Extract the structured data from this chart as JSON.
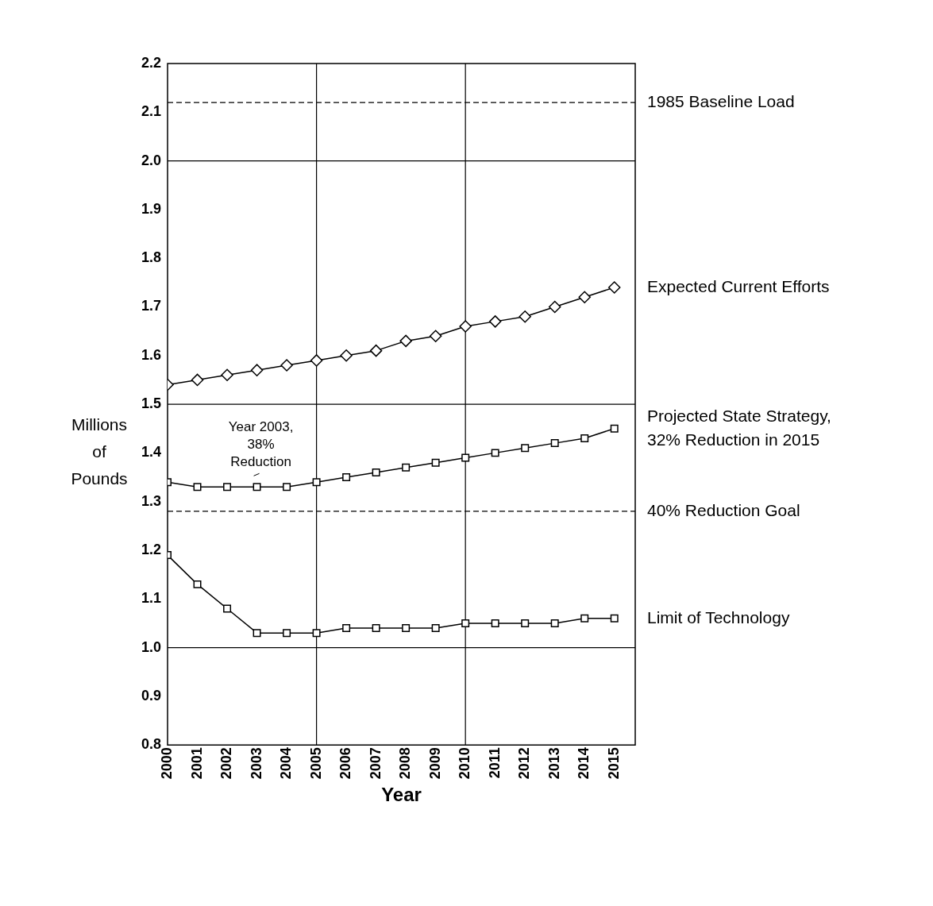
{
  "chart_data": {
    "type": "line",
    "xlabel": "Year",
    "ylabel": "Millions of Pounds",
    "x": [
      2000,
      2001,
      2002,
      2003,
      2004,
      2005,
      2006,
      2007,
      2008,
      2009,
      2010,
      2011,
      2012,
      2013,
      2014,
      2015
    ],
    "xlim": [
      2000,
      2015.7
    ],
    "xticks": [
      2000,
      2001,
      2002,
      2003,
      2004,
      2005,
      2006,
      2007,
      2008,
      2009,
      2010,
      2011,
      2012,
      2013,
      2014,
      2015
    ],
    "ylim": [
      0.8,
      2.2
    ],
    "yticks": [
      0.8,
      0.9,
      {
        "value": 1,
        "label": "1.0"
      },
      1.1,
      1.2,
      1.3,
      1.4,
      1.5,
      1.6,
      1.7,
      1.8,
      1.9,
      {
        "value": 2,
        "label": "2.0"
      },
      2.1,
      2.2
    ],
    "grid": false,
    "legend": false,
    "series": [
      {
        "name": "Expected Current Efforts",
        "color": "#000000",
        "marker": "diamond",
        "values": [
          1.54,
          1.55,
          1.56,
          1.57,
          1.58,
          1.59,
          1.6,
          1.61,
          1.63,
          1.64,
          1.66,
          1.67,
          1.68,
          1.7,
          1.72,
          1.74
        ]
      },
      {
        "name": "Projected State Strategy, 32% Reduction in 2015",
        "color": "#000000",
        "marker": "square",
        "values": [
          1.34,
          1.33,
          1.33,
          1.33,
          1.33,
          1.34,
          1.35,
          1.36,
          1.37,
          1.38,
          1.39,
          1.4,
          1.41,
          1.42,
          1.43,
          1.45
        ]
      },
      {
        "name": "Limit of Technology",
        "color": "#000000",
        "marker": "square",
        "values": [
          1.19,
          1.13,
          1.08,
          1.03,
          1.03,
          1.03,
          1.04,
          1.04,
          1.04,
          1.04,
          1.05,
          1.05,
          1.05,
          1.05,
          1.06,
          1.06
        ]
      }
    ],
    "ref_lines": [
      {
        "axis": "y",
        "value": 2.12,
        "label": "1985 Baseline Load",
        "line_style": "dashed"
      },
      {
        "axis": "y",
        "value": 1.28,
        "label": "40% Reduction Goal",
        "line_style": "dashed"
      },
      {
        "axis": "y",
        "value": 2.0,
        "line_style": "solid"
      },
      {
        "axis": "y",
        "value": 1.5,
        "line_style": "solid"
      },
      {
        "axis": "y",
        "value": 1.0,
        "line_style": "solid"
      },
      {
        "axis": "x",
        "value": 2005,
        "line_style": "solid"
      },
      {
        "axis": "x",
        "value": 2010,
        "line_style": "solid"
      }
    ],
    "annotations": [
      {
        "text": "Year 2003, 38% Reduction",
        "x": 2003,
        "y": 1.33
      }
    ]
  }
}
